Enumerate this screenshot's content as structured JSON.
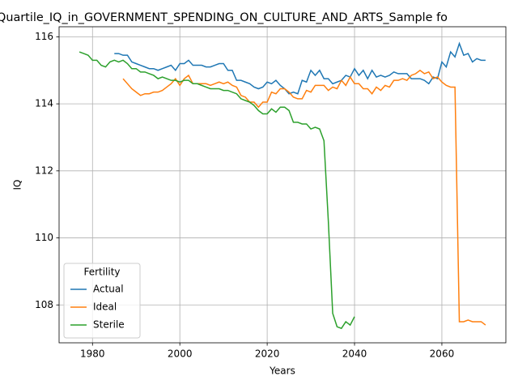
{
  "chart_data": {
    "type": "line",
    "title": "Quartile_IQ_in_GOVERNMENT_SPENDING_ON_CULTURE_AND_ARTS_Sample fo",
    "xlabel": "Years",
    "ylabel": "IQ",
    "xlim": [
      1972.35,
      2074.65
    ],
    "ylim": [
      106.87,
      116.3
    ],
    "xticks": [
      1980,
      2000,
      2020,
      2040,
      2060
    ],
    "yticks": [
      108,
      110,
      112,
      114,
      116
    ],
    "grid": true,
    "legend_title": "Fertility",
    "legend_loc": "lower left",
    "series": [
      {
        "name": "Actual",
        "color": "#1f77b4",
        "x": [
          1985,
          1986,
          1987,
          1988,
          1989,
          1990,
          1991,
          1992,
          1993,
          1994,
          1995,
          1996,
          1997,
          1998,
          1999,
          2000,
          2001,
          2002,
          2003,
          2004,
          2005,
          2006,
          2007,
          2008,
          2009,
          2010,
          2011,
          2012,
          2013,
          2014,
          2015,
          2016,
          2017,
          2018,
          2019,
          2020,
          2021,
          2022,
          2023,
          2024,
          2025,
          2026,
          2027,
          2028,
          2029,
          2030,
          2031,
          2032,
          2033,
          2034,
          2035,
          2036,
          2037,
          2038,
          2039,
          2040,
          2041,
          2042,
          2043,
          2044,
          2045,
          2046,
          2047,
          2048,
          2049,
          2050,
          2051,
          2052,
          2053,
          2054,
          2055,
          2056,
          2057,
          2058,
          2059,
          2060,
          2061,
          2062,
          2063,
          2064,
          2065,
          2066,
          2067,
          2068,
          2069,
          2070
        ],
        "values": [
          115.5,
          115.5,
          115.45,
          115.45,
          115.25,
          115.2,
          115.15,
          115.1,
          115.05,
          115.05,
          115.0,
          115.05,
          115.1,
          115.15,
          115.0,
          115.2,
          115.2,
          115.3,
          115.15,
          115.15,
          115.15,
          115.1,
          115.1,
          115.15,
          115.2,
          115.2,
          115.0,
          115.0,
          114.7,
          114.7,
          114.65,
          114.6,
          114.5,
          114.45,
          114.5,
          114.65,
          114.6,
          114.7,
          114.55,
          114.45,
          114.3,
          114.35,
          114.3,
          114.7,
          114.65,
          115.0,
          114.85,
          115.0,
          114.75,
          114.75,
          114.6,
          114.65,
          114.7,
          114.85,
          114.8,
          115.05,
          114.85,
          115.0,
          114.75,
          115.0,
          114.8,
          114.85,
          114.8,
          114.85,
          114.95,
          114.9,
          114.9,
          114.9,
          114.75,
          114.75,
          114.75,
          114.7,
          114.6,
          114.8,
          114.75,
          115.25,
          115.1,
          115.55,
          115.4,
          115.8,
          115.45,
          115.5,
          115.25,
          115.35,
          115.3,
          115.3
        ]
      },
      {
        "name": "Ideal",
        "color": "#ff7f0e",
        "x": [
          1987,
          1988,
          1989,
          1990,
          1991,
          1992,
          1993,
          1994,
          1995,
          1996,
          1997,
          1998,
          1999,
          2000,
          2001,
          2002,
          2003,
          2004,
          2005,
          2006,
          2007,
          2008,
          2009,
          2010,
          2011,
          2012,
          2013,
          2014,
          2015,
          2016,
          2017,
          2018,
          2019,
          2020,
          2021,
          2022,
          2023,
          2024,
          2025,
          2026,
          2027,
          2028,
          2029,
          2030,
          2031,
          2032,
          2033,
          2034,
          2035,
          2036,
          2037,
          2038,
          2039,
          2040,
          2041,
          2042,
          2043,
          2044,
          2045,
          2046,
          2047,
          2048,
          2049,
          2050,
          2051,
          2052,
          2053,
          2054,
          2055,
          2056,
          2057,
          2058,
          2059,
          2060,
          2061,
          2062,
          2063,
          2064,
          2065,
          2066,
          2067,
          2068,
          2069,
          2070
        ],
        "values": [
          114.75,
          114.6,
          114.45,
          114.35,
          114.25,
          114.3,
          114.3,
          114.35,
          114.35,
          114.4,
          114.5,
          114.6,
          114.75,
          114.55,
          114.75,
          114.85,
          114.6,
          114.6,
          114.6,
          114.6,
          114.55,
          114.6,
          114.65,
          114.6,
          114.65,
          114.55,
          114.5,
          114.25,
          114.2,
          114.05,
          114.05,
          113.9,
          114.05,
          114.05,
          114.35,
          114.3,
          114.45,
          114.45,
          114.35,
          114.2,
          114.15,
          114.15,
          114.4,
          114.35,
          114.55,
          114.55,
          114.55,
          114.4,
          114.5,
          114.45,
          114.7,
          114.55,
          114.8,
          114.6,
          114.6,
          114.45,
          114.45,
          114.3,
          114.5,
          114.4,
          114.55,
          114.5,
          114.7,
          114.7,
          114.75,
          114.7,
          114.85,
          114.9,
          115.0,
          114.9,
          114.95,
          114.75,
          114.8,
          114.65,
          114.55,
          114.5,
          114.5,
          107.5,
          107.5,
          107.55,
          107.5,
          107.5,
          107.5,
          107.4
        ]
      },
      {
        "name": "Sterile",
        "color": "#2ca02c",
        "x": [
          1977,
          1978,
          1979,
          1980,
          1981,
          1982,
          1983,
          1984,
          1985,
          1986,
          1987,
          1988,
          1989,
          1990,
          1991,
          1992,
          1993,
          1994,
          1995,
          1996,
          1997,
          1998,
          1999,
          2000,
          2001,
          2002,
          2003,
          2004,
          2005,
          2006,
          2007,
          2008,
          2009,
          2010,
          2011,
          2012,
          2013,
          2014,
          2015,
          2016,
          2017,
          2018,
          2019,
          2020,
          2021,
          2022,
          2023,
          2024,
          2025,
          2026,
          2027,
          2028,
          2029,
          2030,
          2031,
          2032,
          2033,
          2034,
          2035,
          2036,
          2037,
          2038,
          2039,
          2040
        ],
        "values": [
          115.55,
          115.5,
          115.45,
          115.3,
          115.3,
          115.15,
          115.1,
          115.25,
          115.3,
          115.25,
          115.3,
          115.2,
          115.05,
          115.05,
          114.95,
          114.95,
          114.9,
          114.85,
          114.75,
          114.8,
          114.75,
          114.7,
          114.7,
          114.65,
          114.7,
          114.7,
          114.6,
          114.6,
          114.55,
          114.5,
          114.45,
          114.45,
          114.45,
          114.4,
          114.4,
          114.35,
          114.3,
          114.15,
          114.1,
          114.05,
          113.95,
          113.8,
          113.7,
          113.7,
          113.85,
          113.75,
          113.9,
          113.9,
          113.8,
          113.45,
          113.45,
          113.4,
          113.4,
          113.25,
          113.3,
          113.25,
          112.9,
          110.5,
          107.75,
          107.35,
          107.3,
          107.5,
          107.4,
          107.65
        ]
      }
    ]
  }
}
